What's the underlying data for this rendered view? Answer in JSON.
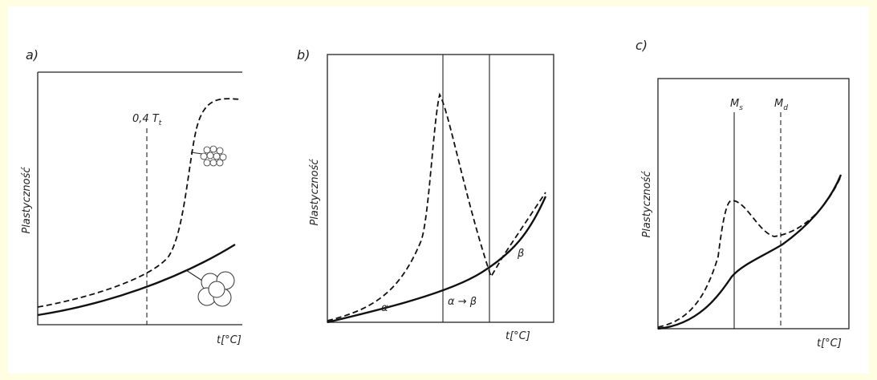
{
  "panels": [
    {
      "label": "a)",
      "y_axis": "Plastyczność",
      "x_axis": "t[°C]",
      "annotations": [
        {
          "main": "0,4 T",
          "sub": "t"
        }
      ]
    },
    {
      "label": "b)",
      "y_axis": "Plastyczność",
      "x_axis": "t[°C]",
      "annotations": [
        {
          "main": "α"
        },
        {
          "main": "α → β"
        },
        {
          "main": "β"
        }
      ]
    },
    {
      "label": "c)",
      "y_axis": "Plastyczność",
      "x_axis": "t[°C]",
      "annotations": [
        {
          "main": "M",
          "sub": "s"
        },
        {
          "main": "M",
          "sub": "d"
        }
      ]
    }
  ]
}
